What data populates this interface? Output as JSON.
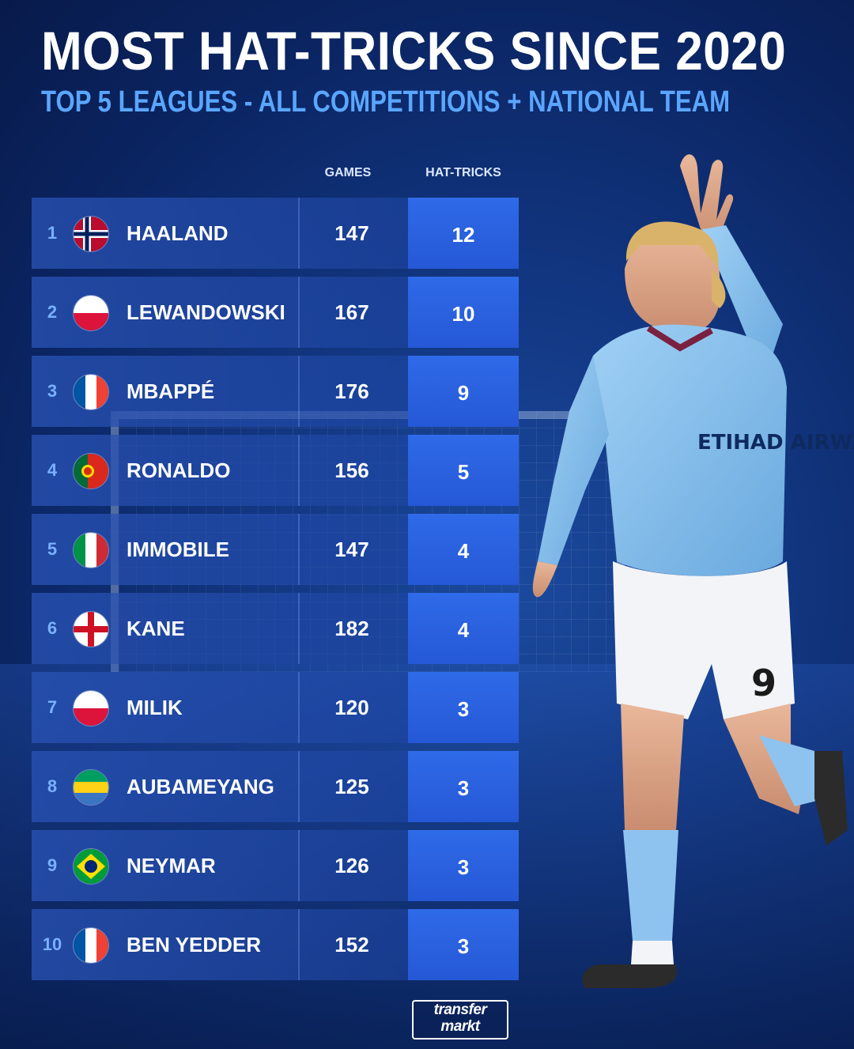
{
  "header": {
    "title": "MOST HAT-TRICKS SINCE 2020",
    "subtitle": "TOP 5 LEAGUES - ALL COMPETITIONS + NATIONAL TEAM"
  },
  "columns": {
    "games": "GAMES",
    "hat_tricks": "HAT-TRICKS"
  },
  "colors": {
    "background": "#0b2563",
    "accent": "#5aa6ff",
    "hat_cell": "#2f6ae8"
  },
  "chart_data": {
    "type": "table",
    "title": "MOST HAT-TRICKS SINCE 2020",
    "subtitle": "TOP 5 LEAGUES - ALL COMPETITIONS + NATIONAL TEAM",
    "columns": [
      "GAMES",
      "HAT-TRICKS"
    ],
    "rows": [
      {
        "rank": "1",
        "flag": "norway-flag-icon",
        "name": "HAALAND",
        "games": "147",
        "hat_tricks": "12"
      },
      {
        "rank": "2",
        "flag": "poland-flag-icon",
        "name": "LEWANDOWSKI",
        "games": "167",
        "hat_tricks": "10"
      },
      {
        "rank": "3",
        "flag": "france-flag-icon",
        "name": "MBAPPÉ",
        "games": "176",
        "hat_tricks": "9"
      },
      {
        "rank": "4",
        "flag": "portugal-flag-icon",
        "name": "RONALDO",
        "games": "156",
        "hat_tricks": "5"
      },
      {
        "rank": "5",
        "flag": "italy-flag-icon",
        "name": "IMMOBILE",
        "games": "147",
        "hat_tricks": "4"
      },
      {
        "rank": "6",
        "flag": "england-flag-icon",
        "name": "KANE",
        "games": "182",
        "hat_tricks": "4"
      },
      {
        "rank": "7",
        "flag": "poland-flag-icon",
        "name": "MILIK",
        "games": "120",
        "hat_tricks": "3"
      },
      {
        "rank": "8",
        "flag": "gabon-flag-icon",
        "name": "AUBAMEYANG",
        "games": "125",
        "hat_tricks": "3"
      },
      {
        "rank": "9",
        "flag": "brazil-flag-icon",
        "name": "NEYMAR",
        "games": "126",
        "hat_tricks": "3"
      },
      {
        "rank": "10",
        "flag": "france-flag-icon",
        "name": "BEN YEDDER",
        "games": "152",
        "hat_tricks": "3"
      }
    ]
  },
  "player_image": {
    "icon": "footballer-celebrating-icon",
    "sponsor_text": "ETIHAD AIRWAYS",
    "shirt_number": "9"
  },
  "logo": {
    "line1": "transfer",
    "line2": "markt"
  }
}
